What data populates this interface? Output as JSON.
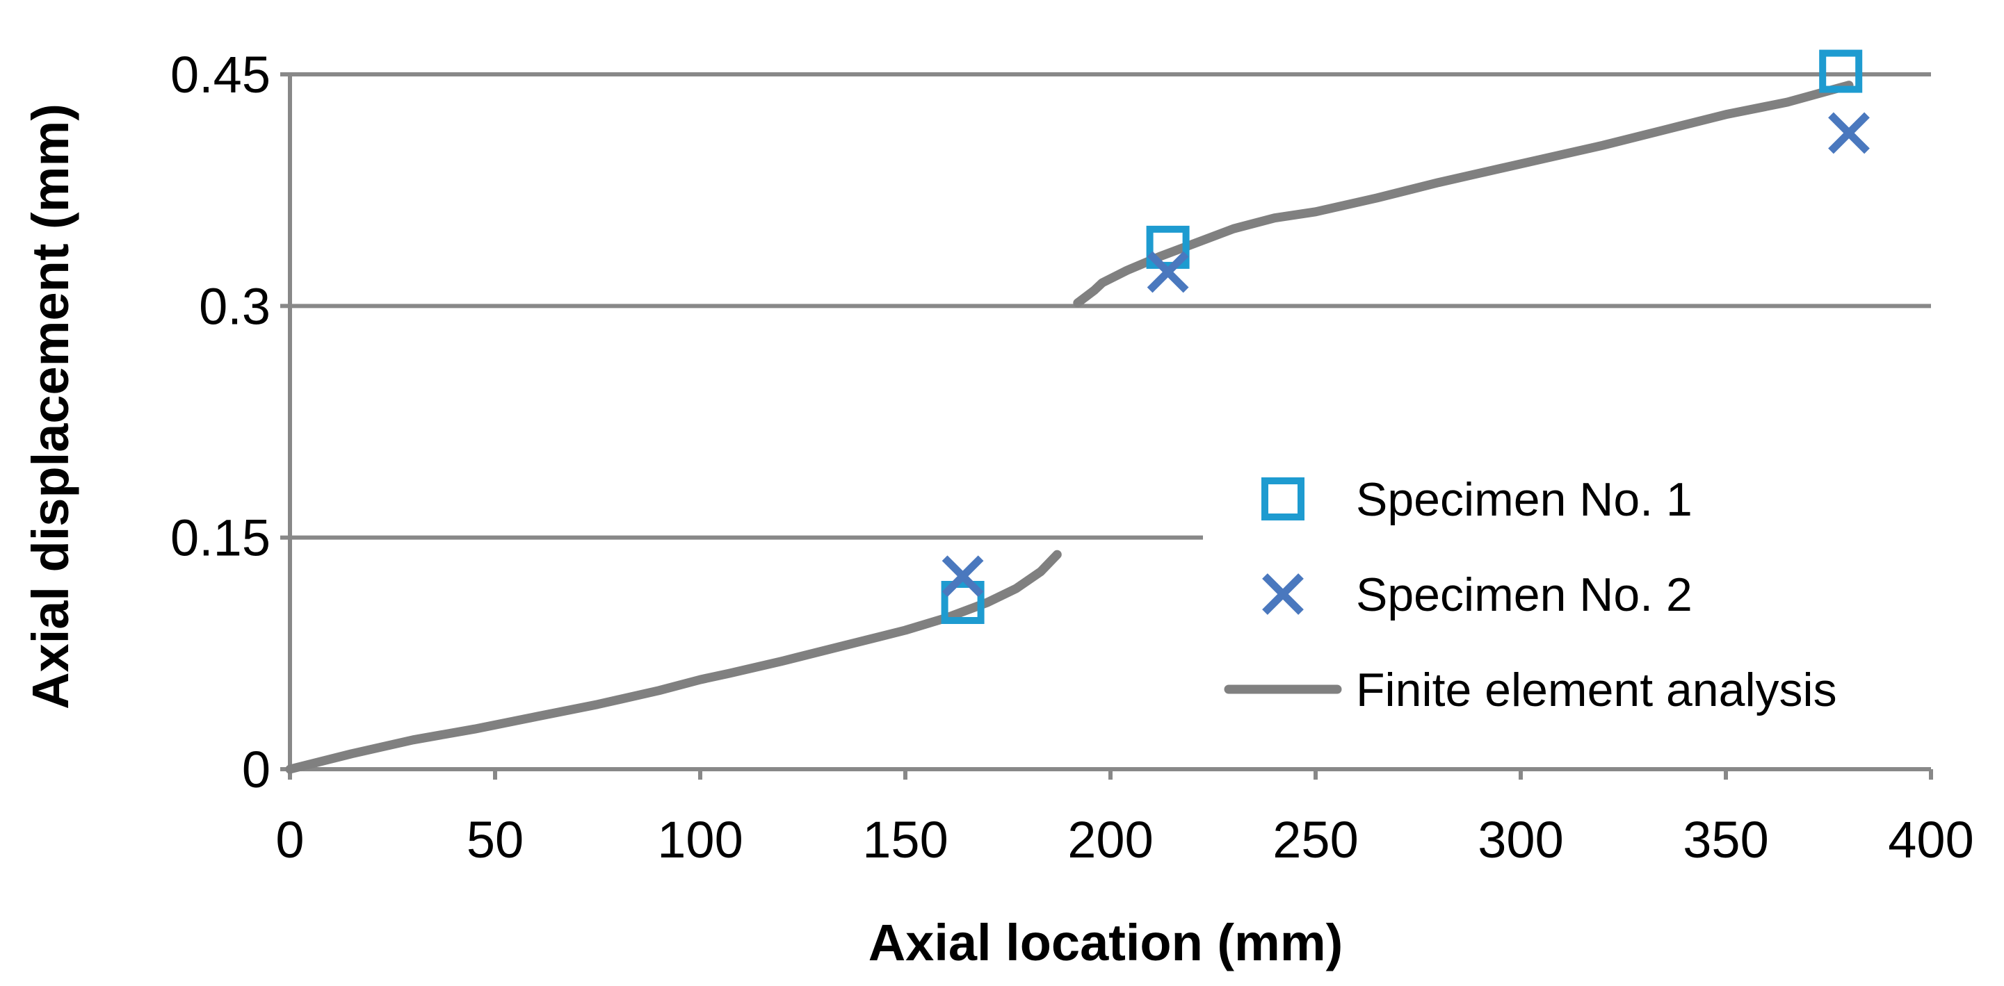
{
  "chart_data": {
    "type": "line",
    "title": "",
    "xlabel": "Axial location (mm)",
    "ylabel": "Axial displacement (mm)",
    "xlim": [
      0,
      400
    ],
    "ylim": [
      0,
      0.45
    ],
    "xticks": [
      {
        "value": 0,
        "label": "0"
      },
      {
        "value": 50,
        "label": "50"
      },
      {
        "value": 100,
        "label": "100"
      },
      {
        "value": 150,
        "label": "150"
      },
      {
        "value": 200,
        "label": "200"
      },
      {
        "value": 250,
        "label": "250"
      },
      {
        "value": 300,
        "label": "300"
      },
      {
        "value": 350,
        "label": "350"
      },
      {
        "value": 400,
        "label": "400"
      }
    ],
    "yticks": [
      {
        "value": 0,
        "label": "0"
      },
      {
        "value": 0.15,
        "label": "0.15"
      },
      {
        "value": 0.3,
        "label": "0.3"
      },
      {
        "value": 0.45,
        "label": "0.45"
      }
    ],
    "grid": "horizontal",
    "legend_position": "right",
    "colors": {
      "axis": "#888888",
      "grid": "#888888",
      "specimen1": "#1E9BD0",
      "specimen2": "#4A78BE",
      "fea": "#808080"
    },
    "series": [
      {
        "name": "Specimen No. 1",
        "kind": "marker",
        "marker": "square",
        "points": [
          [
            164,
            0.108
          ],
          [
            214,
            0.338
          ],
          [
            378,
            0.452
          ]
        ]
      },
      {
        "name": "Specimen No. 2",
        "kind": "marker",
        "marker": "x",
        "points": [
          [
            164,
            0.125
          ],
          [
            214,
            0.322
          ],
          [
            380,
            0.412
          ]
        ]
      },
      {
        "name": "Finite element analysis",
        "kind": "line",
        "segments": [
          [
            [
              0,
              0
            ],
            [
              15,
              0.01
            ],
            [
              30,
              0.019
            ],
            [
              45,
              0.026
            ],
            [
              60,
              0.034
            ],
            [
              75,
              0.042
            ],
            [
              90,
              0.051
            ],
            [
              100,
              0.058
            ],
            [
              107,
              0.062
            ],
            [
              120,
              0.07
            ],
            [
              135,
              0.08
            ],
            [
              150,
              0.09
            ],
            [
              160,
              0.098
            ],
            [
              170,
              0.108
            ],
            [
              177,
              0.117
            ],
            [
              183,
              0.128
            ],
            [
              187,
              0.139
            ]
          ],
          [
            [
              192,
              0.302
            ],
            [
              196,
              0.31
            ],
            [
              198,
              0.315
            ],
            [
              204,
              0.323
            ],
            [
              212,
              0.332
            ],
            [
              220,
              0.34
            ],
            [
              230,
              0.35
            ],
            [
              240,
              0.357
            ],
            [
              250,
              0.361
            ],
            [
              265,
              0.37
            ],
            [
              280,
              0.38
            ],
            [
              290,
              0.386
            ],
            [
              305,
              0.395
            ],
            [
              320,
              0.404
            ],
            [
              335,
              0.414
            ],
            [
              350,
              0.424
            ],
            [
              365,
              0.432
            ],
            [
              380,
              0.443
            ]
          ]
        ]
      }
    ]
  }
}
